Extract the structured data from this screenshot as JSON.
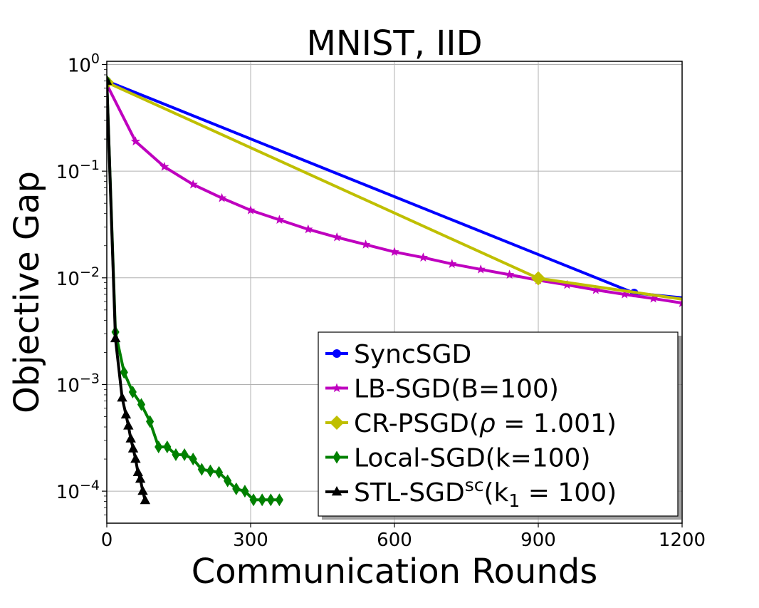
{
  "chart_data": {
    "type": "line",
    "title": "MNIST, IID",
    "xlabel": "Communication Rounds",
    "ylabel": "Objective Gap",
    "xlim": [
      0,
      1200
    ],
    "ylim_log10": [
      -4.3,
      0.03
    ],
    "yscale": "log",
    "grid": true,
    "legend_position": "bottom-right",
    "xticks": [
      {
        "value": 0,
        "label": "0"
      },
      {
        "value": 300,
        "label": "300"
      },
      {
        "value": 600,
        "label": "600"
      },
      {
        "value": 900,
        "label": "900"
      },
      {
        "value": 1200,
        "label": "1200"
      }
    ],
    "yticks": [
      {
        "exp": 0,
        "base": "10",
        "sup": "0"
      },
      {
        "exp": -1,
        "base": "10",
        "sup": "−1"
      },
      {
        "exp": -2,
        "base": "10",
        "sup": "−2"
      },
      {
        "exp": -3,
        "base": "10",
        "sup": "−3"
      },
      {
        "exp": -4,
        "base": "10",
        "sup": "−4"
      }
    ],
    "series": [
      {
        "name": "SyncSGD",
        "legend": {
          "base": "SyncSGD"
        },
        "color": "#0000ff",
        "marker": "circle",
        "x": [
          0,
          1100,
          1200
        ],
        "y": [
          0.7,
          0.0072,
          0.0065
        ],
        "marker_indices": [
          0,
          1
        ]
      },
      {
        "name": "LB-SGD(B=100)",
        "legend": {
          "base": "LB-SGD(B=100)"
        },
        "color": "#bf00bf",
        "marker": "star",
        "x": [
          0,
          60,
          120,
          180,
          240,
          300,
          360,
          420,
          480,
          540,
          600,
          660,
          720,
          780,
          840,
          900,
          960,
          1020,
          1080,
          1140,
          1200
        ],
        "y": [
          0.65,
          0.19,
          0.11,
          0.075,
          0.056,
          0.043,
          0.035,
          0.0285,
          0.024,
          0.0205,
          0.0175,
          0.0155,
          0.0135,
          0.012,
          0.0107,
          0.0095,
          0.0086,
          0.0077,
          0.007,
          0.0064,
          0.0058
        ],
        "marker_indices": "all"
      },
      {
        "name": "CR-PSGD(ρ = 1.001)",
        "legend": {
          "base": "CR-PSGD(",
          "italic": "ρ",
          "rest": " = 1.001)"
        },
        "color": "#bfbf00",
        "marker": "diamond",
        "x": [
          0,
          900,
          1200
        ],
        "y": [
          0.68,
          0.0099,
          0.0063
        ],
        "marker_indices": [
          0,
          1
        ]
      },
      {
        "name": "Local-SGD(k=100)",
        "legend": {
          "base": "Local-SGD(k=100)"
        },
        "color": "#008000",
        "marker": "thin_diamond",
        "x": [
          0,
          18,
          36,
          54,
          72,
          90,
          108,
          126,
          144,
          162,
          180,
          198,
          216,
          234,
          252,
          270,
          288,
          306,
          324,
          342,
          360
        ],
        "y": [
          0.7,
          0.0031,
          0.0013,
          0.00085,
          0.00065,
          0.00045,
          0.00026,
          0.00026,
          0.00022,
          0.00022,
          0.0002,
          0.00016,
          0.000155,
          0.00015,
          0.000125,
          0.000105,
          0.0001,
          8.3e-05,
          8.3e-05,
          8.3e-05,
          8.3e-05
        ],
        "marker_indices": "all"
      },
      {
        "name": "STL-SGDsc(k1 = 100)",
        "legend": {
          "base": "STL-SGD",
          "sup": "sc",
          "rest": "(k",
          "sub": "1",
          "rest2": " = 100)"
        },
        "color": "#000000",
        "marker": "triangle",
        "x": [
          0,
          18,
          32,
          40,
          45,
          50,
          55,
          60,
          65,
          70,
          75,
          80
        ],
        "y": [
          0.7,
          0.0027,
          0.00075,
          0.00052,
          0.00041,
          0.00031,
          0.00025,
          0.0002,
          0.00015,
          0.00013,
          0.0001,
          8.2e-05
        ],
        "marker_indices": "all"
      }
    ]
  }
}
